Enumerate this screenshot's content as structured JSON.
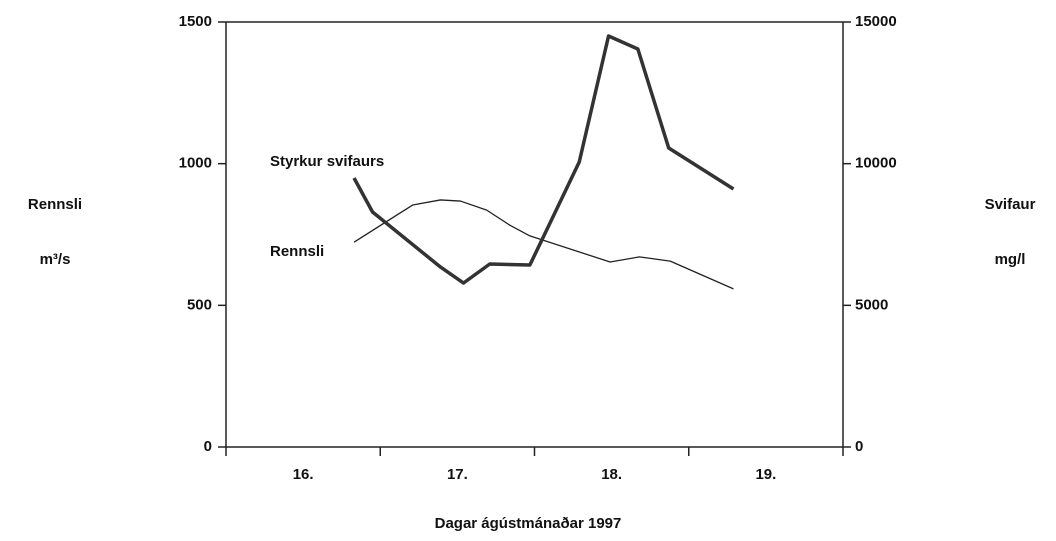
{
  "chart_data": {
    "type": "line",
    "x_label": "Dagar ágústmánaðar 1997",
    "y_label": [
      "Rennsli",
      "m³/s"
    ],
    "y2_label": [
      "Svifaur",
      "mg/l"
    ],
    "xlim": [
      16,
      20
    ],
    "xticks": [
      {
        "value": 16,
        "label": "16."
      },
      {
        "value": 17,
        "label": "17."
      },
      {
        "value": 18,
        "label": "18."
      },
      {
        "value": 19,
        "label": "19."
      }
    ],
    "ylim": [
      0,
      1500
    ],
    "yticks": [
      0,
      500,
      1000,
      1500
    ],
    "y2lim": [
      0,
      15000
    ],
    "y2ticks": [
      0,
      5000,
      10000,
      15000
    ],
    "series": [
      {
        "name": "Rennsli",
        "color": "#222",
        "axis": "y",
        "x": [
          16.83,
          17.21,
          17.39,
          17.52,
          17.69,
          17.84,
          17.97,
          18.49,
          18.68,
          18.88,
          19.29
        ],
        "values": [
          723,
          854,
          872,
          868,
          836,
          783,
          745,
          653,
          671,
          656,
          558
        ]
      },
      {
        "name": "Styrkur svifaurs",
        "color": "#333",
        "axis": "y2",
        "x": [
          16.83,
          16.95,
          17.39,
          17.54,
          17.71,
          17.97,
          18.11,
          18.29,
          18.48,
          18.67,
          18.87,
          19.29
        ],
        "values": [
          9494,
          8294,
          6353,
          5788,
          6459,
          6424,
          8012,
          10059,
          14506,
          14047,
          10553,
          9106
        ]
      }
    ]
  }
}
